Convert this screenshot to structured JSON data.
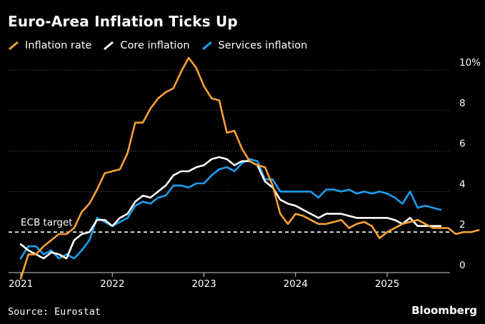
{
  "title": "Euro-Area Inflation Ticks Up",
  "legend": [
    {
      "label": "Inflation rate",
      "color": "#f7a136"
    },
    {
      "label": "Core inflation",
      "color": "#ffffff"
    },
    {
      "label": "Services inflation",
      "color": "#1a9ff1"
    }
  ],
  "source": "Source: Eurostat",
  "brand": "Bloomberg",
  "annotation": "ECB target",
  "chart_data": {
    "type": "line",
    "title": "Euro-Area Inflation Ticks Up",
    "xlabel": "",
    "ylabel": "",
    "ylim": [
      0,
      10
    ],
    "xlim": [
      2021.0,
      2025.75
    ],
    "yticks": [
      0,
      2,
      4,
      6,
      8,
      10
    ],
    "ytick_labels": [
      "0",
      "2",
      "4",
      "6",
      "8",
      "10%"
    ],
    "xticks": [
      2021,
      2022,
      2023,
      2024,
      2025
    ],
    "xtick_labels": [
      "2021",
      "2022",
      "2023",
      "2024",
      "2025"
    ],
    "grid": true,
    "reference_line": {
      "y": 2,
      "label": "ECB target",
      "style": "dashed"
    },
    "series": [
      {
        "name": "Inflation rate",
        "color": "#f7a136",
        "start": "2021-01",
        "frequency": "monthly",
        "values": [
          -0.3,
          0.9,
          0.9,
          1.3,
          1.6,
          1.9,
          1.9,
          2.2,
          3.0,
          3.4,
          4.1,
          4.9,
          5.0,
          5.1,
          5.9,
          7.4,
          7.4,
          8.1,
          8.6,
          8.9,
          9.1,
          9.9,
          10.6,
          10.1,
          9.2,
          8.6,
          8.5,
          6.9,
          7.0,
          6.1,
          5.5,
          5.3,
          5.2,
          4.3,
          2.9,
          2.4,
          2.9,
          2.8,
          2.6,
          2.4,
          2.4,
          2.5,
          2.6,
          2.2,
          2.4,
          2.5,
          2.3,
          1.7,
          2.0,
          2.2,
          2.4,
          2.5,
          2.6,
          2.4,
          2.2,
          2.2,
          2.2,
          1.9,
          2.0,
          2.0,
          2.1
        ]
      },
      {
        "name": "Core inflation",
        "color": "#ffffff",
        "start": "2021-01",
        "frequency": "monthly",
        "values": [
          1.4,
          1.1,
          0.9,
          0.7,
          1.0,
          0.9,
          0.7,
          1.6,
          1.9,
          2.0,
          2.6,
          2.6,
          2.3,
          2.7,
          2.9,
          3.5,
          3.8,
          3.7,
          4.0,
          4.3,
          4.8,
          5.0,
          5.0,
          5.2,
          5.3,
          5.6,
          5.7,
          5.6,
          5.3,
          5.5,
          5.5,
          5.3,
          4.5,
          4.2,
          3.6,
          3.4,
          3.3,
          3.1,
          2.9,
          2.7,
          2.9,
          2.9,
          2.9,
          2.8,
          2.7,
          2.7,
          2.7,
          2.7,
          2.7,
          2.6,
          2.4,
          2.7,
          2.3,
          2.3,
          2.3,
          2.3
        ]
      },
      {
        "name": "Services inflation",
        "color": "#1a9ff1",
        "start": "2021-01",
        "frequency": "monthly",
        "values": [
          0.7,
          1.3,
          1.3,
          0.9,
          1.1,
          0.7,
          0.9,
          0.7,
          1.1,
          1.6,
          2.7,
          2.5,
          2.3,
          2.5,
          2.7,
          3.3,
          3.5,
          3.4,
          3.7,
          3.8,
          4.3,
          4.3,
          4.2,
          4.4,
          4.4,
          4.8,
          5.1,
          5.2,
          5.0,
          5.4,
          5.6,
          5.5,
          4.6,
          4.6,
          4.0,
          4.0,
          4.0,
          4.0,
          4.0,
          3.7,
          4.1,
          4.1,
          4.0,
          4.1,
          3.9,
          4.0,
          3.9,
          4.0,
          3.9,
          3.7,
          3.4,
          4.0,
          3.2,
          3.3,
          3.2,
          3.1
        ]
      }
    ]
  }
}
